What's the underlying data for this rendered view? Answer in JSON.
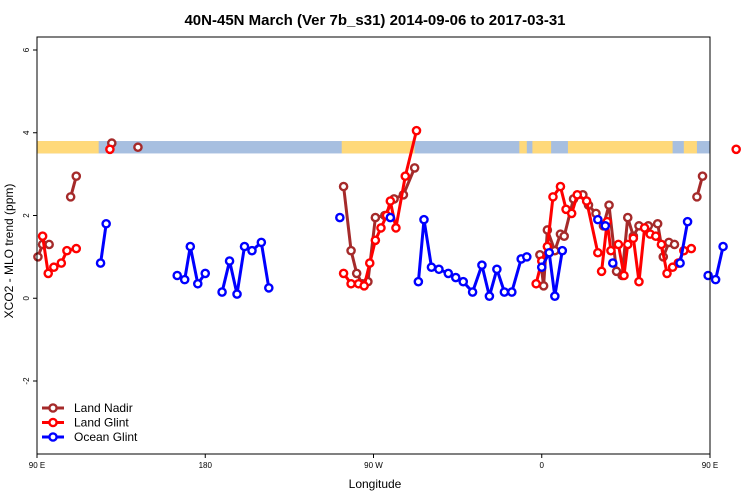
{
  "chart_data": {
    "type": "line",
    "title": "40N-45N March (Ver 7b_s31)   2014-09-06 to 2017-03-31",
    "xlabel": "Longitude",
    "ylabel": "XCO2 - MLO trend (ppm)",
    "xlim": [
      90,
      450
    ],
    "ylim": [
      -4,
      6
    ],
    "x_ticks": [
      {
        "value": 90,
        "label": "90 E"
      },
      {
        "value": 180,
        "label": "180"
      },
      {
        "value": 270,
        "label": "90 W"
      },
      {
        "value": 360,
        "label": "0"
      },
      {
        "value": 450,
        "label": "90 E"
      },
      {
        "value": 540,
        "label": "180"
      }
    ],
    "y_ticks": [
      {
        "value": -2,
        "label": "-2"
      },
      {
        "value": 0,
        "label": "0"
      },
      {
        "value": 2,
        "label": "2"
      },
      {
        "value": 4,
        "label": "4"
      },
      {
        "value": 6,
        "label": "6"
      }
    ],
    "legend_position": "bottom-left",
    "land_mask_band": {
      "y_range": [
        3.5,
        3.8
      ],
      "land_color": "#FFD97A",
      "ocean_color": "#A7BFE0",
      "land_segments": [
        [
          90,
          123
        ],
        [
          118,
          121
        ],
        [
          253,
          292
        ],
        [
          348,
          352
        ],
        [
          355,
          365
        ],
        [
          374,
          430
        ],
        [
          436,
          443
        ]
      ]
    },
    "series": [
      {
        "name": "Land Nadir",
        "color": "#A52A2A",
        "segments": [
          [
            [
              90.5,
              1.0
            ],
            [
              93,
              1.3
            ],
            [
              96.5,
              1.3
            ]
          ],
          [
            [
              108,
              2.45
            ],
            [
              111,
              2.95
            ]
          ],
          [
            [
              130,
              3.75
            ]
          ],
          [
            [
              144,
              3.65
            ]
          ],
          [
            [
              254,
              2.7
            ],
            [
              258,
              1.15
            ],
            [
              261,
              0.6
            ],
            [
              264,
              0.35
            ],
            [
              267,
              0.4
            ],
            [
              271,
              1.95
            ],
            [
              276,
              2.0
            ],
            [
              281,
              2.4
            ],
            [
              286,
              2.5
            ],
            [
              292,
              3.15
            ]
          ],
          [
            [
              359,
              1.05
            ],
            [
              361,
              0.3
            ],
            [
              363,
              1.65
            ],
            [
              367,
              1.15
            ],
            [
              370,
              1.55
            ],
            [
              372,
              1.5
            ],
            [
              377,
              2.4
            ],
            [
              382,
              2.5
            ],
            [
              385,
              2.25
            ],
            [
              389,
              2.05
            ],
            [
              393,
              1.75
            ],
            [
              396,
              2.25
            ],
            [
              400,
              0.65
            ],
            [
              403,
              0.55
            ],
            [
              406,
              1.95
            ],
            [
              409,
              1.5
            ],
            [
              412,
              1.75
            ],
            [
              417,
              1.75
            ],
            [
              422,
              1.8
            ],
            [
              425,
              1.0
            ],
            [
              428,
              1.35
            ],
            [
              431,
              1.3
            ]
          ],
          [
            [
              443,
              2.45
            ],
            [
              446,
              2.95
            ]
          ]
        ]
      },
      {
        "name": "Land Glint",
        "color": "#FF0000",
        "segments": [
          [
            [
              93,
              1.5
            ],
            [
              96,
              0.6
            ],
            [
              99,
              0.75
            ],
            [
              103,
              0.85
            ],
            [
              106,
              1.15
            ],
            [
              111,
              1.2
            ]
          ],
          [
            [
              129,
              3.6
            ]
          ],
          [
            [
              254,
              0.6
            ],
            [
              258,
              0.35
            ],
            [
              262,
              0.35
            ],
            [
              265,
              0.3
            ],
            [
              268,
              0.85
            ],
            [
              271,
              1.4
            ],
            [
              274,
              1.7
            ],
            [
              277,
              2.0
            ],
            [
              279,
              2.35
            ],
            [
              282,
              1.7
            ],
            [
              287,
              2.95
            ],
            [
              293,
              4.05
            ]
          ],
          [
            [
              357,
              0.35
            ],
            [
              360,
              0.9
            ],
            [
              363,
              1.25
            ],
            [
              366,
              2.45
            ],
            [
              370,
              2.7
            ],
            [
              373,
              2.15
            ],
            [
              376,
              2.05
            ],
            [
              379,
              2.5
            ],
            [
              384,
              2.35
            ],
            [
              390,
              1.1
            ]
          ],
          [
            [
              392,
              0.65
            ],
            [
              395,
              1.85
            ],
            [
              397,
              1.15
            ],
            [
              401,
              1.3
            ],
            [
              404,
              0.55
            ],
            [
              406,
              1.3
            ],
            [
              409,
              1.45
            ],
            [
              412,
              0.4
            ],
            [
              415,
              1.7
            ],
            [
              418,
              1.55
            ],
            [
              421,
              1.5
            ],
            [
              424,
              1.3
            ],
            [
              427,
              0.6
            ],
            [
              430,
              0.75
            ],
            [
              433,
              0.85
            ],
            [
              436,
              1.15
            ],
            [
              440,
              1.2
            ]
          ],
          [
            [
              464,
              3.6
            ]
          ]
        ]
      },
      {
        "name": "Ocean Glint",
        "color": "#0000FF",
        "segments": [
          [
            [
              124,
              0.85
            ],
            [
              127,
              1.8
            ]
          ],
          [
            [
              165,
              0.55
            ],
            [
              169,
              0.45
            ],
            [
              172,
              1.25
            ],
            [
              176,
              0.35
            ],
            [
              180,
              0.6
            ]
          ],
          [
            [
              189,
              0.15
            ],
            [
              193,
              0.9
            ],
            [
              197,
              0.1
            ],
            [
              201,
              1.25
            ],
            [
              205,
              1.15
            ],
            [
              210,
              1.35
            ],
            [
              214,
              0.25
            ]
          ],
          [
            [
              252,
              1.95
            ]
          ],
          [
            [
              279,
              1.95
            ]
          ],
          [
            [
              294,
              0.4
            ],
            [
              297,
              1.9
            ],
            [
              301,
              0.75
            ],
            [
              305,
              0.7
            ],
            [
              310,
              0.6
            ],
            [
              314,
              0.5
            ],
            [
              318,
              0.4
            ],
            [
              323,
              0.15
            ],
            [
              328,
              0.8
            ],
            [
              332,
              0.05
            ],
            [
              336,
              0.7
            ],
            [
              340,
              0.15
            ],
            [
              344,
              0.15
            ],
            [
              349,
              0.95
            ],
            [
              352,
              1.0
            ]
          ],
          [
            [
              360,
              0.75
            ],
            [
              364,
              1.1
            ],
            [
              367,
              0.05
            ],
            [
              371,
              1.15
            ]
          ],
          [
            [
              390,
              1.9
            ],
            [
              394,
              1.75
            ]
          ],
          [
            [
              398,
              0.85
            ]
          ],
          [
            [
              434,
              0.85
            ],
            [
              438,
              1.85
            ]
          ],
          [
            [
              449,
              0.55
            ],
            [
              453,
              0.45
            ],
            [
              457,
              1.25
            ]
          ]
        ]
      }
    ]
  }
}
